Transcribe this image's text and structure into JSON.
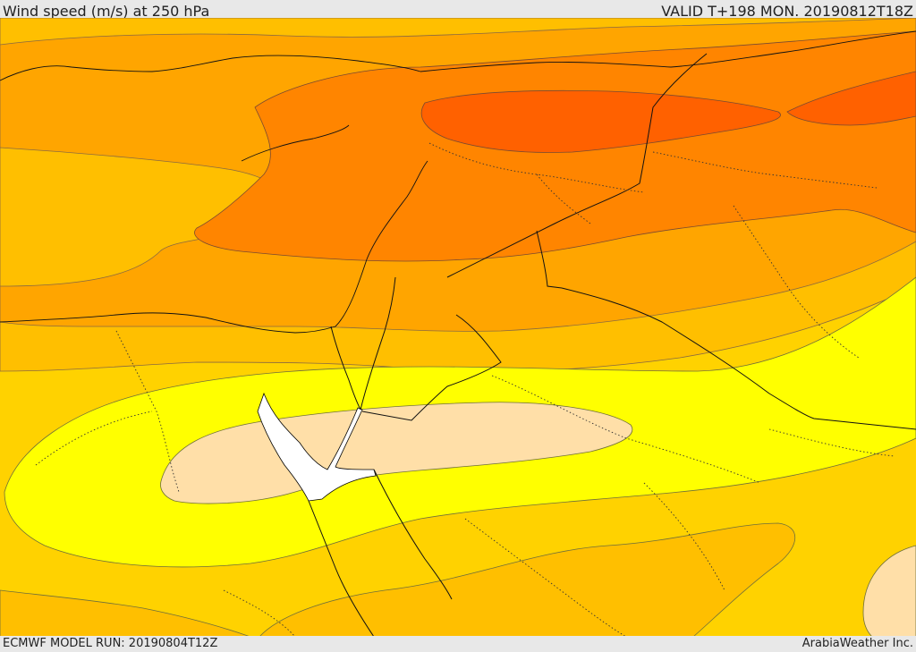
{
  "header": {
    "title": "Wind speed (m/s) at 250 hPa",
    "valid": "VALID T+198 MON. 20190812T18Z"
  },
  "footer": {
    "model_run": "ECMWF MODEL RUN: 20190804T12Z",
    "brand": "ArabiaWeather Inc."
  },
  "map": {
    "colors": {
      "background_band": "#ffd200",
      "band_light_orange": "#ffbf00",
      "band_orange": "#ffa500",
      "band_dark_orange": "#ff8500",
      "band_deep_orange": "#ff6100",
      "band_yellow": "#ffff00",
      "band_pale": "#ffdfa8",
      "sea_water": "#ffffff"
    }
  }
}
